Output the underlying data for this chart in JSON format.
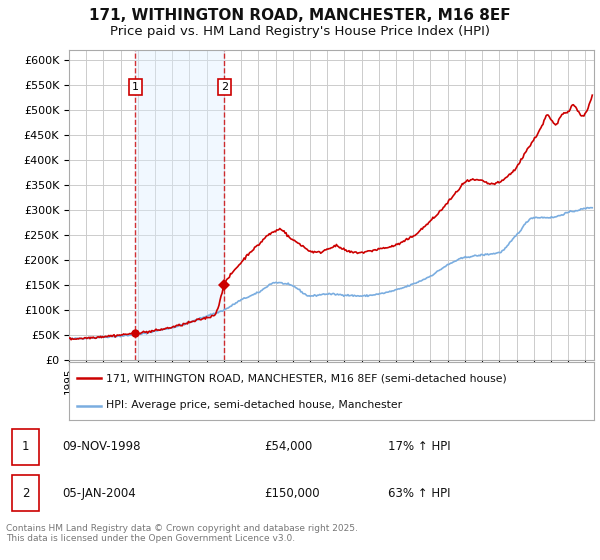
{
  "title": "171, WITHINGTON ROAD, MANCHESTER, M16 8EF",
  "subtitle": "Price paid vs. HM Land Registry's House Price Index (HPI)",
  "title_fontsize": 11,
  "subtitle_fontsize": 9.5,
  "background_color": "#ffffff",
  "plot_bg_color": "#ffffff",
  "grid_color": "#cccccc",
  "ylim": [
    0,
    620000
  ],
  "yticks": [
    0,
    50000,
    100000,
    150000,
    200000,
    250000,
    300000,
    350000,
    400000,
    450000,
    500000,
    550000,
    600000
  ],
  "ytick_labels": [
    "£0",
    "£50K",
    "£100K",
    "£150K",
    "£200K",
    "£250K",
    "£300K",
    "£350K",
    "£400K",
    "£450K",
    "£500K",
    "£550K",
    "£600K"
  ],
  "xlim_start": 1995.0,
  "xlim_end": 2025.5,
  "hpi_color": "#7aade0",
  "price_color": "#cc0000",
  "legend_label_price": "171, WITHINGTON ROAD, MANCHESTER, M16 8EF (semi-detached house)",
  "legend_label_hpi": "HPI: Average price, semi-detached house, Manchester",
  "purchase1_date": 1998.86,
  "purchase1_price": 54000,
  "purchase1_label": "1",
  "purchase2_date": 2004.02,
  "purchase2_price": 150000,
  "purchase2_label": "2",
  "vline_color": "#cc0000",
  "shade_color": "#ddeeff",
  "shade_alpha": 0.4,
  "footer_text": "Contains HM Land Registry data © Crown copyright and database right 2025.\nThis data is licensed under the Open Government Licence v3.0.",
  "hpi_anchors_x": [
    1995.0,
    1996.0,
    1997.0,
    1998.0,
    1999.0,
    2000.0,
    2001.0,
    2002.0,
    2003.0,
    2004.0,
    2005.0,
    2006.0,
    2007.0,
    2008.0,
    2009.0,
    2010.0,
    2011.0,
    2012.0,
    2013.0,
    2014.0,
    2015.0,
    2016.0,
    2017.0,
    2018.0,
    2019.0,
    2020.0,
    2021.0,
    2022.0,
    2023.0,
    2024.0,
    2025.3
  ],
  "hpi_anchors_y": [
    42000,
    44000,
    46000,
    48000,
    51000,
    58000,
    65000,
    75000,
    88000,
    100000,
    120000,
    135000,
    155000,
    148000,
    128000,
    132000,
    130000,
    128000,
    132000,
    140000,
    152000,
    168000,
    190000,
    205000,
    210000,
    215000,
    250000,
    285000,
    285000,
    295000,
    305000
  ],
  "price_anchors_x": [
    1995.0,
    1996.0,
    1997.0,
    1998.0,
    1998.86,
    1999.5,
    2000.5,
    2001.5,
    2002.5,
    2003.5,
    2004.02,
    2004.5,
    2005.0,
    2005.5,
    2006.0,
    2006.5,
    2007.0,
    2007.3,
    2007.8,
    2008.5,
    2009.0,
    2009.5,
    2010.0,
    2010.5,
    2011.0,
    2011.5,
    2012.0,
    2012.5,
    2013.0,
    2013.5,
    2014.0,
    2014.5,
    2015.0,
    2015.5,
    2016.0,
    2016.5,
    2017.0,
    2017.5,
    2018.0,
    2018.5,
    2019.0,
    2019.5,
    2020.0,
    2020.5,
    2021.0,
    2021.5,
    2022.0,
    2022.5,
    2022.8,
    2023.0,
    2023.3,
    2023.6,
    2024.0,
    2024.3,
    2024.8,
    2025.1,
    2025.3
  ],
  "price_anchors_y": [
    42000,
    44000,
    47000,
    50000,
    54000,
    56000,
    62000,
    70000,
    80000,
    92000,
    150000,
    175000,
    195000,
    215000,
    230000,
    248000,
    258000,
    262000,
    245000,
    230000,
    218000,
    215000,
    222000,
    228000,
    220000,
    215000,
    215000,
    218000,
    222000,
    225000,
    230000,
    238000,
    248000,
    262000,
    278000,
    295000,
    315000,
    335000,
    355000,
    360000,
    358000,
    352000,
    355000,
    368000,
    385000,
    415000,
    440000,
    470000,
    490000,
    480000,
    470000,
    490000,
    498000,
    510000,
    488000,
    500000,
    518000
  ]
}
